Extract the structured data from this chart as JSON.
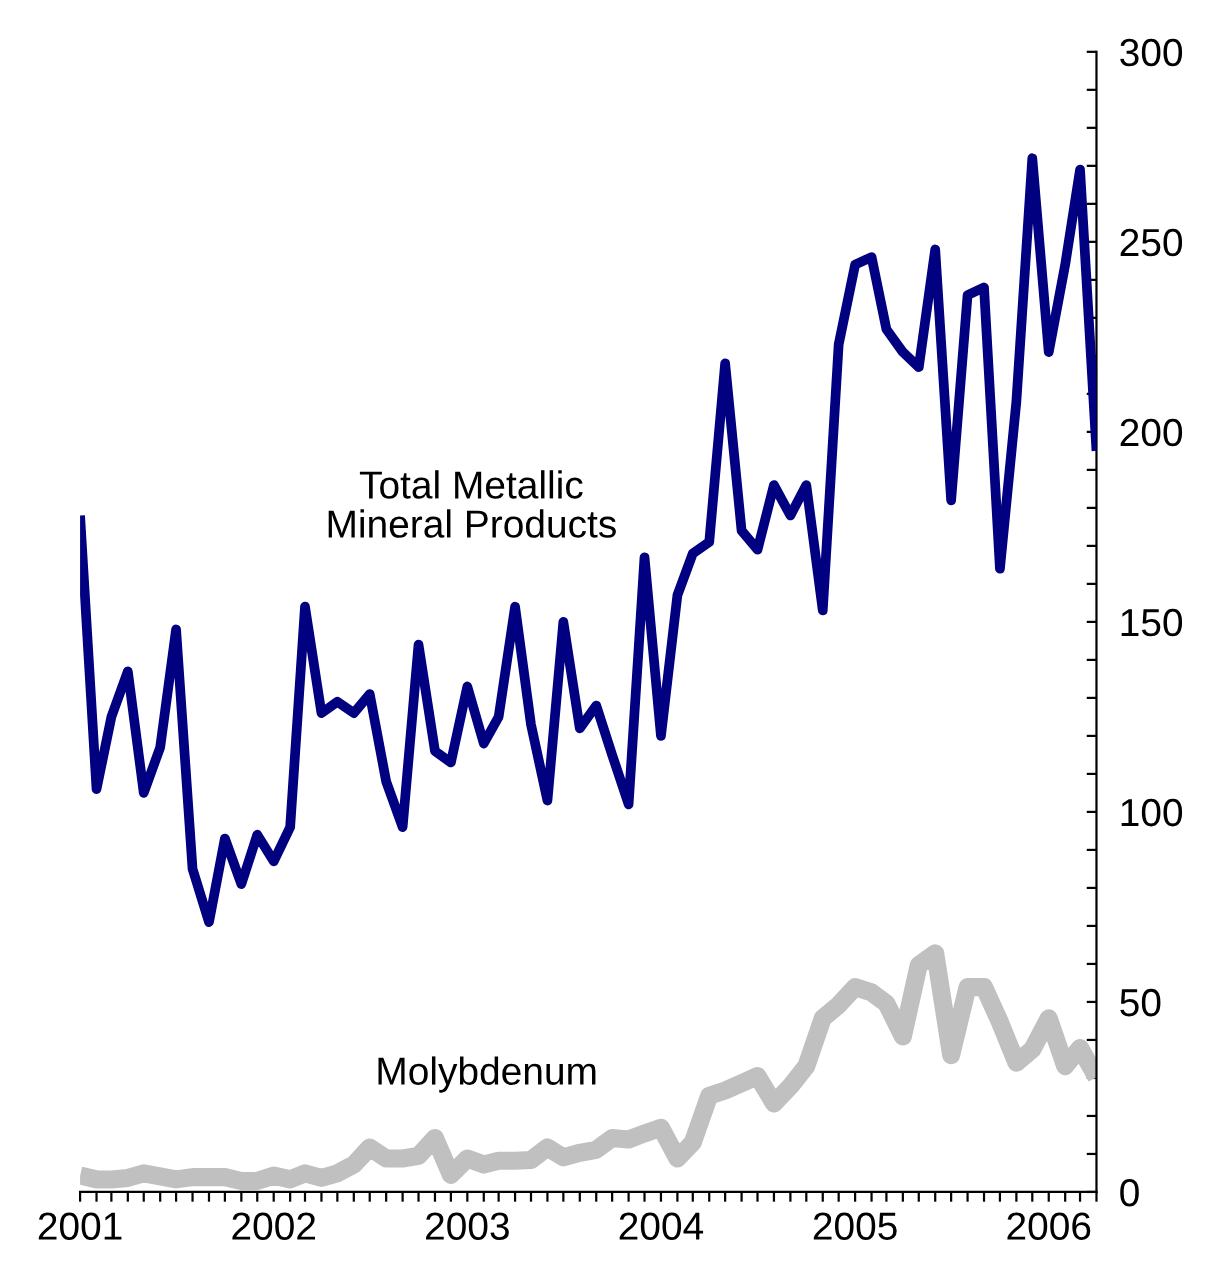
{
  "chart_data": {
    "type": "line",
    "x": [
      "2001-01",
      "2001-02",
      "2001-03",
      "2001-04",
      "2001-05",
      "2001-06",
      "2001-07",
      "2001-08",
      "2001-09",
      "2001-10",
      "2001-11",
      "2001-12",
      "2002-01",
      "2002-02",
      "2002-03",
      "2002-04",
      "2002-05",
      "2002-06",
      "2002-07",
      "2002-08",
      "2002-09",
      "2002-10",
      "2002-11",
      "2002-12",
      "2003-01",
      "2003-02",
      "2003-03",
      "2003-04",
      "2003-05",
      "2003-06",
      "2003-07",
      "2003-08",
      "2003-09",
      "2003-10",
      "2003-11",
      "2003-12",
      "2004-01",
      "2004-02",
      "2004-03",
      "2004-04",
      "2004-05",
      "2004-06",
      "2004-07",
      "2004-08",
      "2004-09",
      "2004-10",
      "2004-11",
      "2004-12",
      "2005-01",
      "2005-02",
      "2005-03",
      "2005-04",
      "2005-05",
      "2005-06",
      "2005-07",
      "2005-08",
      "2005-09",
      "2005-10",
      "2005-11",
      "2005-12",
      "2006-01",
      "2006-02",
      "2006-03",
      "2006-04"
    ],
    "series": [
      {
        "name": "Total Metallic\nMineral Products",
        "color": "#000080",
        "values": [
          178,
          106,
          125,
          137,
          105,
          117,
          148,
          85,
          71,
          93,
          81,
          94,
          87,
          96,
          154,
          126,
          129,
          126,
          131,
          108,
          96,
          144,
          116,
          113,
          133,
          118,
          125,
          154,
          123,
          103,
          150,
          122,
          128,
          115,
          102,
          167,
          120,
          157,
          168,
          171,
          218,
          174,
          169,
          186,
          178,
          186,
          153,
          223,
          244,
          246,
          227,
          221,
          217,
          248,
          182,
          236,
          238,
          164,
          208,
          272,
          221,
          244,
          269,
          195
        ]
      },
      {
        "name": "Molybdenum",
        "color": "#c0c0c0",
        "values": [
          4.3,
          3.3,
          3.3,
          3.7,
          4.9,
          4.1,
          3.3,
          3.9,
          3.9,
          3.9,
          2.9,
          2.9,
          4.3,
          3.3,
          4.9,
          3.7,
          4.9,
          7.2,
          11.7,
          8.8,
          8.8,
          9.5,
          14.2,
          4.5,
          8.8,
          7.2,
          8.2,
          8.2,
          8.4,
          11.7,
          9.1,
          10.3,
          11.1,
          14.2,
          13.8,
          15.4,
          16.9,
          8.8,
          13.0,
          25.3,
          26.7,
          28.6,
          30.5,
          23.3,
          27.8,
          33.1,
          45.7,
          49.2,
          53.9,
          52.5,
          49.6,
          40.9,
          59.7,
          62.8,
          36.0,
          53.9,
          53.9,
          44.7,
          34.0,
          37.5,
          45.7,
          33.1,
          37.9,
          30.2
        ]
      }
    ],
    "xlim": [
      "2001-01",
      "2006-04"
    ],
    "xticks": [
      {
        "value": "2001-01",
        "label": "2001"
      },
      {
        "value": "2001-02",
        "label": null
      },
      {
        "value": "2001-03",
        "label": null
      },
      {
        "value": "2001-04",
        "label": null
      },
      {
        "value": "2001-05",
        "label": null
      },
      {
        "value": "2001-06",
        "label": null
      },
      {
        "value": "2001-07",
        "label": null
      },
      {
        "value": "2001-08",
        "label": null
      },
      {
        "value": "2001-09",
        "label": null
      },
      {
        "value": "2001-10",
        "label": null
      },
      {
        "value": "2001-11",
        "label": null
      },
      {
        "value": "2001-12",
        "label": null
      },
      {
        "value": "2002-01",
        "label": "2002"
      },
      {
        "value": "2002-02",
        "label": null
      },
      {
        "value": "2002-03",
        "label": null
      },
      {
        "value": "2002-04",
        "label": null
      },
      {
        "value": "2002-05",
        "label": null
      },
      {
        "value": "2002-06",
        "label": null
      },
      {
        "value": "2002-07",
        "label": null
      },
      {
        "value": "2002-08",
        "label": null
      },
      {
        "value": "2002-09",
        "label": null
      },
      {
        "value": "2002-10",
        "label": null
      },
      {
        "value": "2002-11",
        "label": null
      },
      {
        "value": "2002-12",
        "label": null
      },
      {
        "value": "2003-01",
        "label": "2003"
      },
      {
        "value": "2003-02",
        "label": null
      },
      {
        "value": "2003-03",
        "label": null
      },
      {
        "value": "2003-04",
        "label": null
      },
      {
        "value": "2003-05",
        "label": null
      },
      {
        "value": "2003-06",
        "label": null
      },
      {
        "value": "2003-07",
        "label": null
      },
      {
        "value": "2003-08",
        "label": null
      },
      {
        "value": "2003-09",
        "label": null
      },
      {
        "value": "2003-10",
        "label": null
      },
      {
        "value": "2003-11",
        "label": null
      },
      {
        "value": "2003-12",
        "label": null
      },
      {
        "value": "2004-01",
        "label": "2004"
      },
      {
        "value": "2004-02",
        "label": null
      },
      {
        "value": "2004-03",
        "label": null
      },
      {
        "value": "2004-04",
        "label": null
      },
      {
        "value": "2004-05",
        "label": null
      },
      {
        "value": "2004-06",
        "label": null
      },
      {
        "value": "2004-07",
        "label": null
      },
      {
        "value": "2004-08",
        "label": null
      },
      {
        "value": "2004-09",
        "label": null
      },
      {
        "value": "2004-10",
        "label": null
      },
      {
        "value": "2004-11",
        "label": null
      },
      {
        "value": "2004-12",
        "label": null
      },
      {
        "value": "2005-01",
        "label": "2005"
      },
      {
        "value": "2005-02",
        "label": null
      },
      {
        "value": "2005-03",
        "label": null
      },
      {
        "value": "2005-04",
        "label": null
      },
      {
        "value": "2005-05",
        "label": null
      },
      {
        "value": "2005-06",
        "label": null
      },
      {
        "value": "2005-07",
        "label": null
      },
      {
        "value": "2005-08",
        "label": null
      },
      {
        "value": "2005-09",
        "label": null
      },
      {
        "value": "2005-10",
        "label": null
      },
      {
        "value": "2005-11",
        "label": null
      },
      {
        "value": "2005-12",
        "label": null
      },
      {
        "value": "2006-01",
        "label": "2006"
      },
      {
        "value": "2006-02",
        "label": null
      },
      {
        "value": "2006-03",
        "label": null
      },
      {
        "value": "2006-04",
        "label": null
      }
    ],
    "ylim": [
      0,
      300
    ],
    "yticks": [
      0,
      {
        "value": 10,
        "label": null
      },
      {
        "value": 20,
        "label": null
      },
      {
        "value": 30,
        "label": null
      },
      {
        "value": 40,
        "label": null
      },
      50,
      {
        "value": 60,
        "label": null
      },
      {
        "value": 70,
        "label": null
      },
      {
        "value": 80,
        "label": null
      },
      {
        "value": 90,
        "label": null
      },
      100,
      {
        "value": 110,
        "label": null
      },
      {
        "value": 120,
        "label": null
      },
      {
        "value": 130,
        "label": null
      },
      {
        "value": 140,
        "label": null
      },
      150,
      {
        "value": 160,
        "label": null
      },
      {
        "value": 170,
        "label": null
      },
      {
        "value": 180,
        "label": null
      },
      {
        "value": 190,
        "label": null
      },
      200,
      {
        "value": 210,
        "label": null
      },
      {
        "value": 220,
        "label": null
      },
      {
        "value": 230,
        "label": null
      },
      {
        "value": 240,
        "label": null
      },
      250,
      {
        "value": 260,
        "label": null
      },
      {
        "value": 270,
        "label": null
      },
      {
        "value": 280,
        "label": null
      },
      {
        "value": 290,
        "label": null
      },
      300
    ],
    "grid": false,
    "legend": false
  }
}
